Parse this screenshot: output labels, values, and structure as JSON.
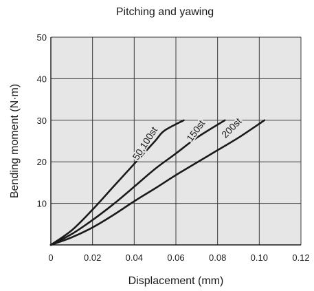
{
  "chart_data": {
    "type": "line",
    "title": "Pitching and yawing",
    "xlabel": "Displacement (mm)",
    "ylabel": "Bending moment (N·m)",
    "xlim": [
      0,
      0.12
    ],
    "ylim": [
      0,
      50
    ],
    "x_ticks": [
      0,
      0.02,
      0.04,
      0.06,
      0.08,
      0.1,
      0.12
    ],
    "x_tick_labels": [
      "0",
      "0.02",
      "0.04",
      "0.06",
      "0.08",
      "0.10",
      "0.12"
    ],
    "y_ticks": [
      10,
      20,
      30,
      40,
      50
    ],
    "y_tick_labels": [
      "10",
      "20",
      "30",
      "40",
      "50"
    ],
    "grid": true,
    "plot_background": "#e6e6e6",
    "line_color": "#1a1a1a",
    "series": [
      {
        "name": "50,100st",
        "points": [
          [
            0,
            0
          ],
          [
            0.01,
            3.5
          ],
          [
            0.02,
            8.5
          ],
          [
            0.03,
            14
          ],
          [
            0.04,
            19.5
          ],
          [
            0.05,
            25
          ],
          [
            0.0545,
            27.5
          ],
          [
            0.0638,
            30
          ]
        ]
      },
      {
        "name": "150st",
        "points": [
          [
            0,
            0
          ],
          [
            0.01,
            2.6
          ],
          [
            0.02,
            6
          ],
          [
            0.03,
            9.8
          ],
          [
            0.04,
            14
          ],
          [
            0.05,
            18.3
          ],
          [
            0.06,
            22
          ],
          [
            0.07,
            25.8
          ],
          [
            0.0835,
            30
          ]
        ]
      },
      {
        "name": "200st",
        "points": [
          [
            0,
            0
          ],
          [
            0.01,
            1.8
          ],
          [
            0.02,
            4.2
          ],
          [
            0.03,
            7.2
          ],
          [
            0.04,
            10.5
          ],
          [
            0.05,
            13.6
          ],
          [
            0.06,
            16.8
          ],
          [
            0.07,
            19.8
          ],
          [
            0.08,
            22.8
          ],
          [
            0.09,
            25.8
          ],
          [
            0.1025,
            30
          ]
        ]
      }
    ]
  }
}
